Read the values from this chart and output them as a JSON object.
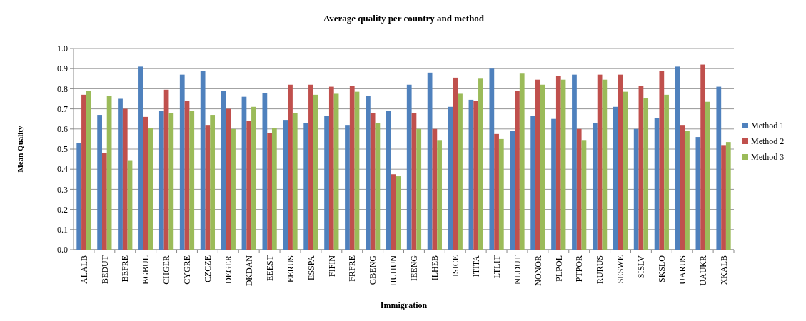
{
  "chart_data": {
    "type": "bar",
    "title": "Average quality per country and method",
    "xlabel": "Immigration",
    "ylabel": "Mean Quality",
    "categories": [
      "ALALB",
      "BEDUT",
      "BEFRE",
      "BGBUL",
      "CHGER",
      "CYGRE",
      "CZCZE",
      "DEGER",
      "DKDAN",
      "EEEST",
      "EERUS",
      "ESSPA",
      "FIFIN",
      "FRFRE",
      "GBENG",
      "HUHUN",
      "IEENG",
      "ILHEB",
      "ISICE",
      "ITITA",
      "LTLIT",
      "NLDUT",
      "NONOR",
      "PLPOL",
      "PTPOR",
      "RURUS",
      "SESWE",
      "SISLV",
      "SKSLO",
      "UARUS",
      "UAUKR",
      "XKALB"
    ],
    "series": [
      {
        "name": "Method 1",
        "color": "#4f81bd",
        "values": [
          0.53,
          0.67,
          0.75,
          0.91,
          0.69,
          0.87,
          0.89,
          0.79,
          0.76,
          0.78,
          0.645,
          0.63,
          0.665,
          0.62,
          0.765,
          0.69,
          0.82,
          0.88,
          0.71,
          0.745,
          0.9,
          0.59,
          0.665,
          0.65,
          0.87,
          0.63,
          0.71,
          0.6,
          0.655,
          0.91,
          0.56,
          0.81
        ]
      },
      {
        "name": "Method 2",
        "color": "#c0504d",
        "values": [
          0.77,
          0.48,
          0.7,
          0.66,
          0.795,
          0.74,
          0.62,
          0.7,
          0.64,
          0.58,
          0.82,
          0.82,
          0.81,
          0.815,
          0.68,
          0.375,
          0.68,
          0.6,
          0.855,
          0.74,
          0.575,
          0.79,
          0.845,
          0.865,
          0.6,
          0.87,
          0.87,
          0.815,
          0.89,
          0.62,
          0.92,
          0.52
        ]
      },
      {
        "name": "Method 3",
        "color": "#9bbb59",
        "values": [
          0.79,
          0.765,
          0.445,
          0.605,
          0.68,
          0.69,
          0.67,
          0.6,
          0.71,
          0.605,
          0.68,
          0.77,
          0.775,
          0.785,
          0.63,
          0.365,
          0.6,
          0.545,
          0.775,
          0.85,
          0.55,
          0.875,
          0.82,
          0.845,
          0.545,
          0.845,
          0.785,
          0.755,
          0.77,
          0.59,
          0.735,
          0.535
        ]
      }
    ],
    "ylim": [
      0,
      1
    ],
    "yticks": [
      {
        "value": 0,
        "label": "0.0"
      },
      {
        "value": 0.1,
        "label": "0.1"
      },
      {
        "value": 0.2,
        "label": "0.2"
      },
      {
        "value": 0.3,
        "label": "0.3"
      },
      {
        "value": 0.4,
        "label": "0.4"
      },
      {
        "value": 0.5,
        "label": "0.5"
      },
      {
        "value": 0.6,
        "label": "0.6"
      },
      {
        "value": 0.7,
        "label": "0.7"
      },
      {
        "value": 0.8,
        "label": "0.8"
      },
      {
        "value": 0.9,
        "label": "0.9"
      },
      {
        "value": 1,
        "label": "1.0"
      }
    ],
    "grid": "y",
    "legend": "right"
  }
}
